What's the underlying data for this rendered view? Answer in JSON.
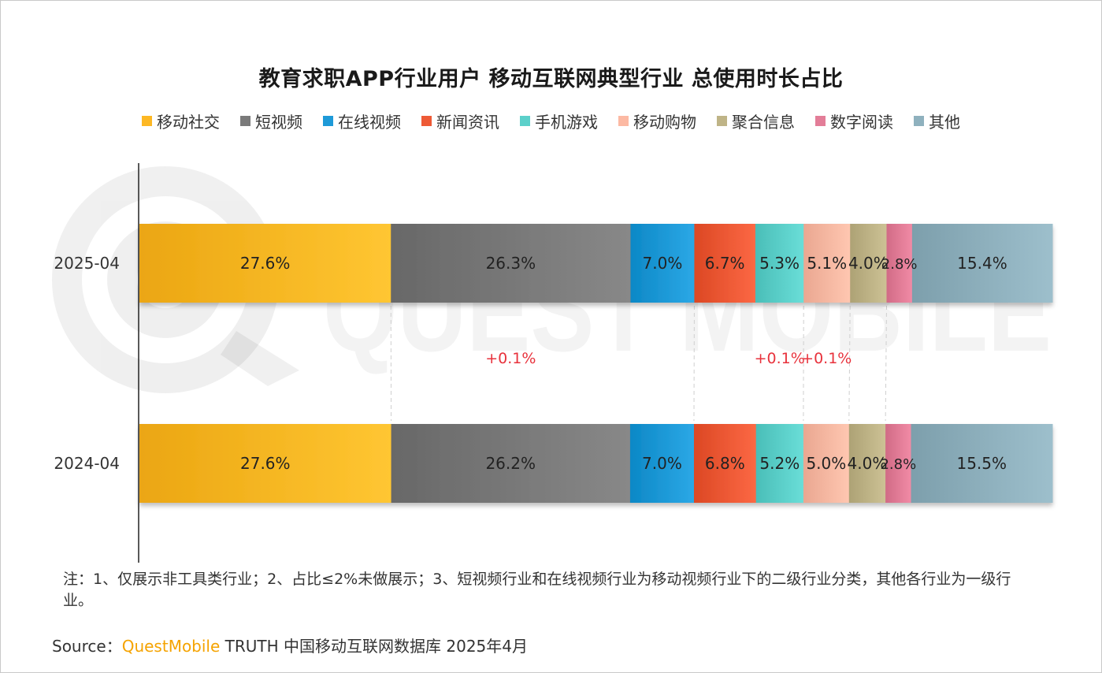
{
  "title": "教育求职APP行业用户 移动互联网典型行业 总使用时长占比",
  "chart_data": {
    "type": "bar",
    "orientation": "horizontal",
    "stacked": true,
    "categories": [
      "2025-04",
      "2024-04"
    ],
    "series": [
      {
        "name": "移动社交",
        "color": "#FDB824",
        "values": [
          27.6,
          27.6
        ],
        "labels": [
          "27.6%",
          "27.6%"
        ]
      },
      {
        "name": "短视频",
        "color": "#7A7A7A",
        "values": [
          26.3,
          26.2
        ],
        "labels": [
          "26.3%",
          "26.2%"
        ]
      },
      {
        "name": "在线视频",
        "color": "#1E9AD8",
        "values": [
          7.0,
          7.0
        ],
        "labels": [
          "7.0%",
          "7.0%"
        ]
      },
      {
        "name": "新闻资讯",
        "color": "#EE5A36",
        "values": [
          6.7,
          6.8
        ],
        "labels": [
          "6.7%",
          "6.8%"
        ]
      },
      {
        "name": "手机游戏",
        "color": "#5CD0CA",
        "values": [
          5.3,
          5.2
        ],
        "labels": [
          "5.3%",
          "5.2%"
        ]
      },
      {
        "name": "移动购物",
        "color": "#FCB9A3",
        "values": [
          5.1,
          5.0
        ],
        "labels": [
          "5.1%",
          "5.0%"
        ]
      },
      {
        "name": "聚合信息",
        "color": "#BFB487",
        "values": [
          4.0,
          4.0
        ],
        "labels": [
          "4.0%",
          "4.0%"
        ]
      },
      {
        "name": "数字阅读",
        "color": "#E37D98",
        "values": [
          2.8,
          2.8
        ],
        "labels": [
          "2.8%",
          "2.8%"
        ]
      },
      {
        "name": "其他",
        "color": "#8FB1BE",
        "values": [
          15.4,
          15.5
        ],
        "labels": [
          "15.4%",
          "15.5%"
        ]
      }
    ],
    "changes": [
      {
        "series": "短视频",
        "label": "+0.1%"
      },
      {
        "series": "手机游戏",
        "label": "+0.1%"
      },
      {
        "series": "移动购物",
        "label": "+0.1%"
      }
    ],
    "change_color": "#E8323C",
    "legend_position": "top"
  },
  "note": "注：1、仅展示非工具类行业；2、占比≤2%未做展示；3、短视频行业和在线视频行业为移动视频行业下的二级行业分类，其他各行业为一级行业。",
  "source": {
    "prefix": "Source：",
    "brand": "QuestMobile",
    "rest": " TRUTH 中国移动互联网数据库 2025年4月"
  },
  "watermark": {
    "text": "QUEST MOBILE"
  }
}
